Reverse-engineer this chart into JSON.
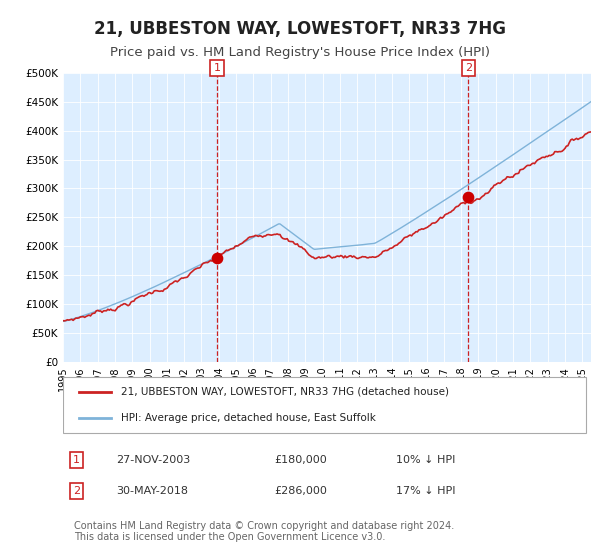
{
  "title": "21, UBBESTON WAY, LOWESTOFT, NR33 7HG",
  "subtitle": "Price paid vs. HM Land Registry's House Price Index (HPI)",
  "title_fontsize": 12,
  "subtitle_fontsize": 9.5,
  "background_color": "#ffffff",
  "plot_bg_color": "#ddeeff",
  "ylim": [
    0,
    500000
  ],
  "yticks": [
    0,
    50000,
    100000,
    150000,
    200000,
    250000,
    300000,
    350000,
    400000,
    450000,
    500000
  ],
  "ytick_labels": [
    "£0",
    "£50K",
    "£100K",
    "£150K",
    "£200K",
    "£250K",
    "£300K",
    "£350K",
    "£400K",
    "£450K",
    "£500K"
  ],
  "xlim_start": 1995.0,
  "xlim_end": 2025.5,
  "xticks": [
    1995,
    1996,
    1997,
    1998,
    1999,
    2000,
    2001,
    2002,
    2003,
    2004,
    2005,
    2006,
    2007,
    2008,
    2009,
    2010,
    2011,
    2012,
    2013,
    2014,
    2015,
    2016,
    2017,
    2018,
    2019,
    2020,
    2021,
    2022,
    2023,
    2024,
    2025
  ],
  "hpi_color": "#7fb3d9",
  "sale_color": "#cc2222",
  "sale_marker_color": "#cc0000",
  "vline_color": "#cc2222",
  "annotation_box_color": "#cc2222",
  "legend_label_sale": "21, UBBESTON WAY, LOWESTOFT, NR33 7HG (detached house)",
  "legend_label_hpi": "HPI: Average price, detached house, East Suffolk",
  "event1_x": 2003.9,
  "event1_label": "1",
  "event1_date": "27-NOV-2003",
  "event1_price": "£180,000",
  "event1_hpi": "10% ↓ HPI",
  "event1_sale_y": 180000,
  "event2_x": 2018.42,
  "event2_label": "2",
  "event2_date": "30-MAY-2018",
  "event2_price": "£286,000",
  "event2_hpi": "17% ↓ HPI",
  "event2_sale_y": 286000,
  "footnote": "Contains HM Land Registry data © Crown copyright and database right 2024.\nThis data is licensed under the Open Government Licence v3.0.",
  "footnote_fontsize": 7
}
